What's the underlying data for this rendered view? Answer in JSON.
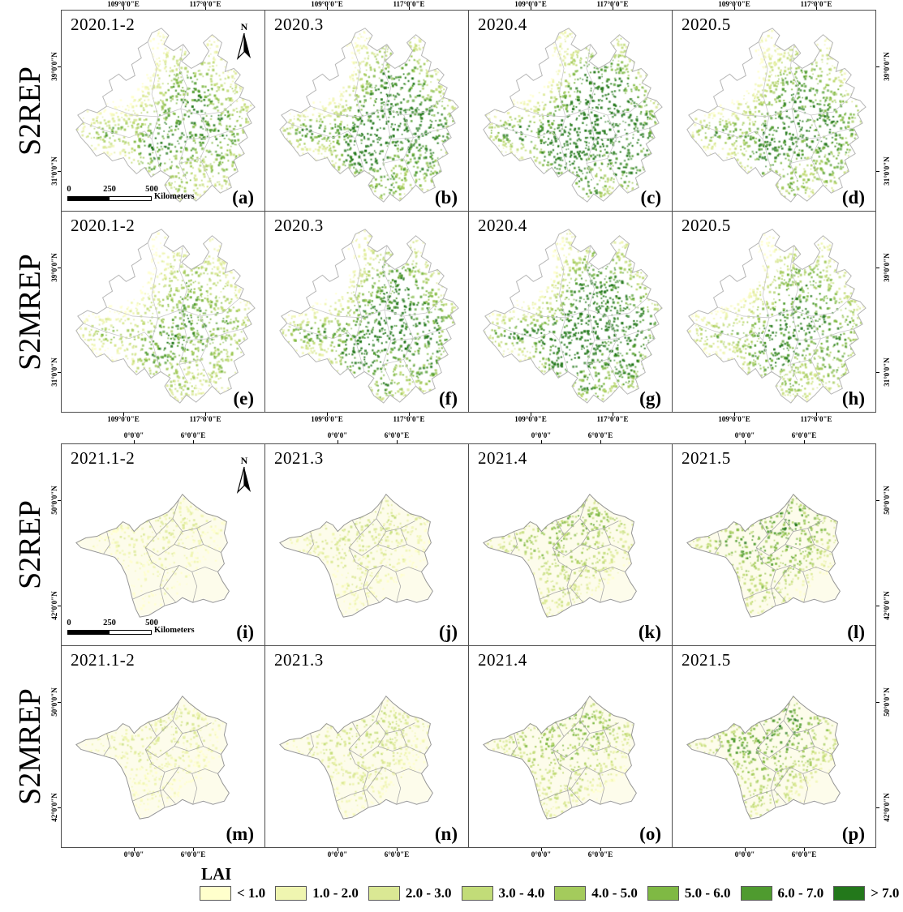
{
  "rows": [
    {
      "label": "S2REP"
    },
    {
      "label": "S2MREP"
    },
    {
      "label": "S2REP"
    },
    {
      "label": "S2MREP"
    }
  ],
  "axes": {
    "china": {
      "top": [
        "109°0'0\"E",
        "117°0'0\"E"
      ],
      "bottom": [
        "109°0'0\"E",
        "117°0'0\"E"
      ],
      "left": [
        "39°0'0\"N",
        "31°0'0\"N"
      ],
      "right": [
        "39°0'0\"N",
        "31°0'0\"N"
      ]
    },
    "france": {
      "top": [
        "0°0'0\"",
        "6°0'0\"E"
      ],
      "bottom": [
        "0°0'0\"",
        "6°0'0\"E"
      ],
      "left": [
        "50°0'0\"N",
        "42°0'0\"N"
      ],
      "right": [
        "50°0'0\"N",
        "42°0'0\"N"
      ]
    }
  },
  "panels": [
    {
      "id": "a",
      "title": "2020.1-2",
      "label": "(a)",
      "region": "china",
      "greenness": 0.5
    },
    {
      "id": "b",
      "title": "2020.3",
      "label": "(b)",
      "region": "china",
      "greenness": 0.8
    },
    {
      "id": "c",
      "title": "2020.4",
      "label": "(c)",
      "region": "china",
      "greenness": 0.95
    },
    {
      "id": "d",
      "title": "2020.5",
      "label": "(d)",
      "region": "china",
      "greenness": 0.62
    },
    {
      "id": "e",
      "title": "2020.1-2",
      "label": "(e)",
      "region": "china",
      "greenness": 0.4
    },
    {
      "id": "f",
      "title": "2020.3",
      "label": "(f)",
      "region": "china",
      "greenness": 0.72
    },
    {
      "id": "g",
      "title": "2020.4",
      "label": "(g)",
      "region": "china",
      "greenness": 0.88
    },
    {
      "id": "h",
      "title": "2020.5",
      "label": "(h)",
      "region": "china",
      "greenness": 0.55
    },
    {
      "id": "i",
      "title": "2021.1-2",
      "label": "(i)",
      "region": "france",
      "greenness": 0.1
    },
    {
      "id": "j",
      "title": "2021.3",
      "label": "(j)",
      "region": "france",
      "greenness": 0.15
    },
    {
      "id": "k",
      "title": "2021.4",
      "label": "(k)",
      "region": "france",
      "greenness": 0.34
    },
    {
      "id": "l",
      "title": "2021.5",
      "label": "(l)",
      "region": "france",
      "greenness": 0.48
    },
    {
      "id": "m",
      "title": "2021.1-2",
      "label": "(m)",
      "region": "france",
      "greenness": 0.12
    },
    {
      "id": "n",
      "title": "2021.3",
      "label": "(n)",
      "region": "france",
      "greenness": 0.17
    },
    {
      "id": "o",
      "title": "2021.4",
      "label": "(o)",
      "region": "france",
      "greenness": 0.34
    },
    {
      "id": "p",
      "title": "2021.5",
      "label": "(p)",
      "region": "france",
      "greenness": 0.48
    }
  ],
  "map_elements": {
    "north_label": "N",
    "scalebar": {
      "ticks": [
        "0",
        "250",
        "500"
      ],
      "unit": "Kilometers"
    }
  },
  "legend": {
    "title": "LAI",
    "classes": [
      {
        "label": "< 1.0",
        "color": "#FFFFCC"
      },
      {
        "label": "1.0 - 2.0",
        "color": "#EFF5B0"
      },
      {
        "label": "2.0 - 3.0",
        "color": "#DAE894"
      },
      {
        "label": "3.0 - 4.0",
        "color": "#C2DC78"
      },
      {
        "label": "4.0 - 5.0",
        "color": "#A4CB5C"
      },
      {
        "label": "5.0 - 6.0",
        "color": "#7FB944"
      },
      {
        "label": "6.0 - 7.0",
        "color": "#4F9B2F"
      },
      {
        "label": "> 7.0",
        "color": "#23781B"
      }
    ]
  }
}
